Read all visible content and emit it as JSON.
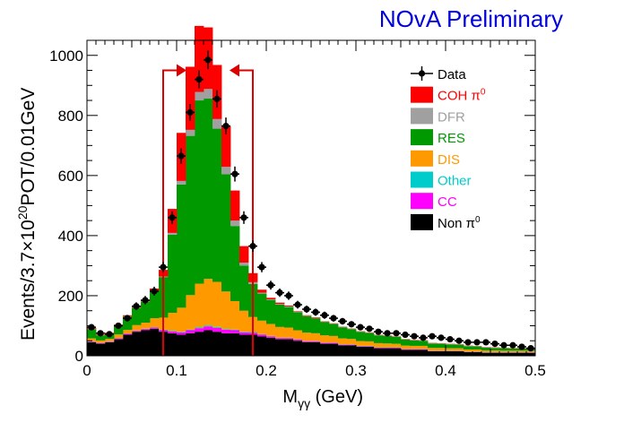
{
  "chart_data": {
    "type": "bar",
    "stacked": true,
    "title": "NOvA Preliminary",
    "xlabel_main": "M",
    "xlabel_sub": "γγ",
    "xlabel_unit": " (GeV)",
    "ylabel_pre": "Events/3.7×10",
    "ylabel_exp": "20",
    "ylabel_post": "POT/0.01GeV",
    "xlim": [
      0,
      0.5
    ],
    "ylim": [
      0,
      1050
    ],
    "bin_width": 0.01,
    "xticks": [
      {
        "v": 0,
        "label": "0"
      },
      {
        "v": 0.1,
        "label": "0.1"
      },
      {
        "v": 0.2,
        "label": "0.2"
      },
      {
        "v": 0.3,
        "label": "0.3"
      },
      {
        "v": 0.4,
        "label": "0.4"
      },
      {
        "v": 0.5,
        "label": "0.5"
      }
    ],
    "yticks": [
      {
        "v": 0,
        "label": "0"
      },
      {
        "v": 200,
        "label": "200"
      },
      {
        "v": 400,
        "label": "400"
      },
      {
        "v": 600,
        "label": "600"
      },
      {
        "v": 800,
        "label": "800"
      },
      {
        "v": 1000,
        "label": "1000"
      }
    ],
    "bin_centers": [
      0.005,
      0.015,
      0.025,
      0.035,
      0.045,
      0.055,
      0.065,
      0.075,
      0.085,
      0.095,
      0.105,
      0.115,
      0.125,
      0.135,
      0.145,
      0.155,
      0.165,
      0.175,
      0.185,
      0.195,
      0.205,
      0.215,
      0.225,
      0.235,
      0.245,
      0.255,
      0.265,
      0.275,
      0.285,
      0.295,
      0.305,
      0.315,
      0.325,
      0.335,
      0.345,
      0.355,
      0.365,
      0.375,
      0.385,
      0.395,
      0.405,
      0.415,
      0.425,
      0.435,
      0.445,
      0.455,
      0.465,
      0.475,
      0.485,
      0.495
    ],
    "series": [
      {
        "name": "Non π0",
        "legend_main": "Non π",
        "legend_sup": "0",
        "color": "#000000",
        "values": [
          45,
          40,
          45,
          55,
          70,
          80,
          85,
          90,
          80,
          75,
          70,
          75,
          80,
          85,
          80,
          75,
          75,
          70,
          70,
          65,
          60,
          55,
          55,
          50,
          45,
          45,
          40,
          40,
          35,
          35,
          30,
          30,
          25,
          25,
          25,
          20,
          20,
          20,
          15,
          15,
          15,
          15,
          12,
          12,
          10,
          10,
          10,
          10,
          10,
          10
        ]
      },
      {
        "name": "CC",
        "legend_main": "CC",
        "legend_sup": "",
        "color": "#ff00ff",
        "values": [
          2,
          2,
          2,
          3,
          3,
          3,
          4,
          4,
          5,
          6,
          8,
          10,
          12,
          13,
          13,
          12,
          10,
          8,
          7,
          6,
          5,
          4,
          4,
          4,
          3,
          3,
          3,
          3,
          2,
          2,
          2,
          2,
          2,
          2,
          2,
          2,
          2,
          2,
          1,
          1,
          1,
          1,
          1,
          1,
          1,
          1,
          1,
          1,
          1,
          1
        ]
      },
      {
        "name": "Other",
        "legend_main": "Other",
        "legend_sup": "",
        "color": "#00cccc",
        "values": [
          1,
          1,
          1,
          1,
          1,
          1,
          1,
          1,
          2,
          2,
          2,
          2,
          3,
          3,
          3,
          2,
          2,
          2,
          2,
          1,
          1,
          1,
          1,
          1,
          1,
          1,
          1,
          1,
          1,
          1,
          1,
          1,
          1,
          1,
          1,
          1,
          1,
          1,
          1,
          1,
          1,
          1,
          1,
          1,
          1,
          1,
          1,
          1,
          1,
          1
        ]
      },
      {
        "name": "DIS",
        "legend_main": "DIS",
        "legend_sup": "",
        "color": "#ff9900",
        "values": [
          10,
          8,
          8,
          12,
          12,
          18,
          20,
          30,
          40,
          60,
          80,
          115,
          145,
          155,
          150,
          125,
          95,
          70,
          50,
          45,
          40,
          36,
          34,
          30,
          28,
          26,
          24,
          22,
          20,
          18,
          16,
          15,
          14,
          13,
          12,
          11,
          10,
          10,
          9,
          9,
          8,
          8,
          7,
          7,
          6,
          6,
          5,
          5,
          5,
          5
        ]
      },
      {
        "name": "RES",
        "legend_main": "RES",
        "legend_sup": "",
        "color": "#009900",
        "values": [
          30,
          17,
          18,
          30,
          45,
          58,
          70,
          90,
          135,
          260,
          410,
          530,
          610,
          600,
          510,
          390,
          250,
          150,
          110,
          90,
          80,
          75,
          68,
          60,
          55,
          50,
          45,
          40,
          37,
          33,
          31,
          28,
          26,
          25,
          23,
          20,
          18,
          17,
          15,
          14,
          13,
          12,
          11,
          10,
          9,
          8,
          8,
          7,
          7,
          7
        ]
      },
      {
        "name": "DFR",
        "legend_main": "DFR",
        "legend_sup": "",
        "color": "#a0a0a0",
        "values": [
          1,
          1,
          1,
          1,
          1,
          1,
          1,
          1,
          2,
          6,
          12,
          20,
          28,
          32,
          32,
          25,
          18,
          10,
          6,
          3,
          2,
          2,
          2,
          1,
          1,
          1,
          1,
          1,
          1,
          1,
          1,
          1,
          1,
          1,
          1,
          1,
          1,
          1,
          1,
          1,
          1,
          1,
          1,
          1,
          1,
          1,
          1,
          1,
          1,
          1
        ]
      },
      {
        "name": "COH π0",
        "legend_main": "COH π",
        "legend_sup": "0",
        "color": "#ff0000",
        "values": [
          3,
          2,
          2,
          2,
          3,
          4,
          5,
          8,
          22,
          80,
          160,
          210,
          220,
          205,
          180,
          135,
          100,
          55,
          30,
          10,
          5,
          4,
          3,
          2,
          2,
          2,
          1,
          1,
          1,
          1,
          1,
          1,
          1,
          1,
          1,
          1,
          1,
          1,
          1,
          1,
          1,
          1,
          1,
          1,
          1,
          1,
          1,
          1,
          1,
          1
        ]
      }
    ],
    "data": {
      "name": "Data",
      "legend_main": "Data",
      "color": "#000000",
      "values": [
        95,
        75,
        72,
        100,
        125,
        165,
        185,
        215,
        295,
        460,
        665,
        810,
        920,
        985,
        855,
        765,
        605,
        460,
        365,
        295,
        235,
        210,
        200,
        170,
        155,
        145,
        135,
        125,
        115,
        105,
        95,
        90,
        80,
        75,
        75,
        70,
        65,
        60,
        65,
        60,
        55,
        50,
        45,
        45,
        45,
        40,
        35,
        35,
        30,
        25
      ],
      "errors": [
        10,
        9,
        9,
        10,
        11,
        13,
        14,
        15,
        17,
        21,
        26,
        28,
        30,
        31,
        29,
        28,
        25,
        21,
        19,
        17,
        15,
        14,
        14,
        13,
        12,
        12,
        12,
        11,
        11,
        10,
        10,
        9,
        9,
        9,
        9,
        8,
        8,
        8,
        8,
        8,
        7,
        7,
        7,
        7,
        7,
        6,
        6,
        6,
        5,
        5
      ]
    },
    "selection_cut": {
      "low": 0.085,
      "high": 0.185,
      "color": "#dd0000"
    },
    "legend_position": "top-right"
  }
}
